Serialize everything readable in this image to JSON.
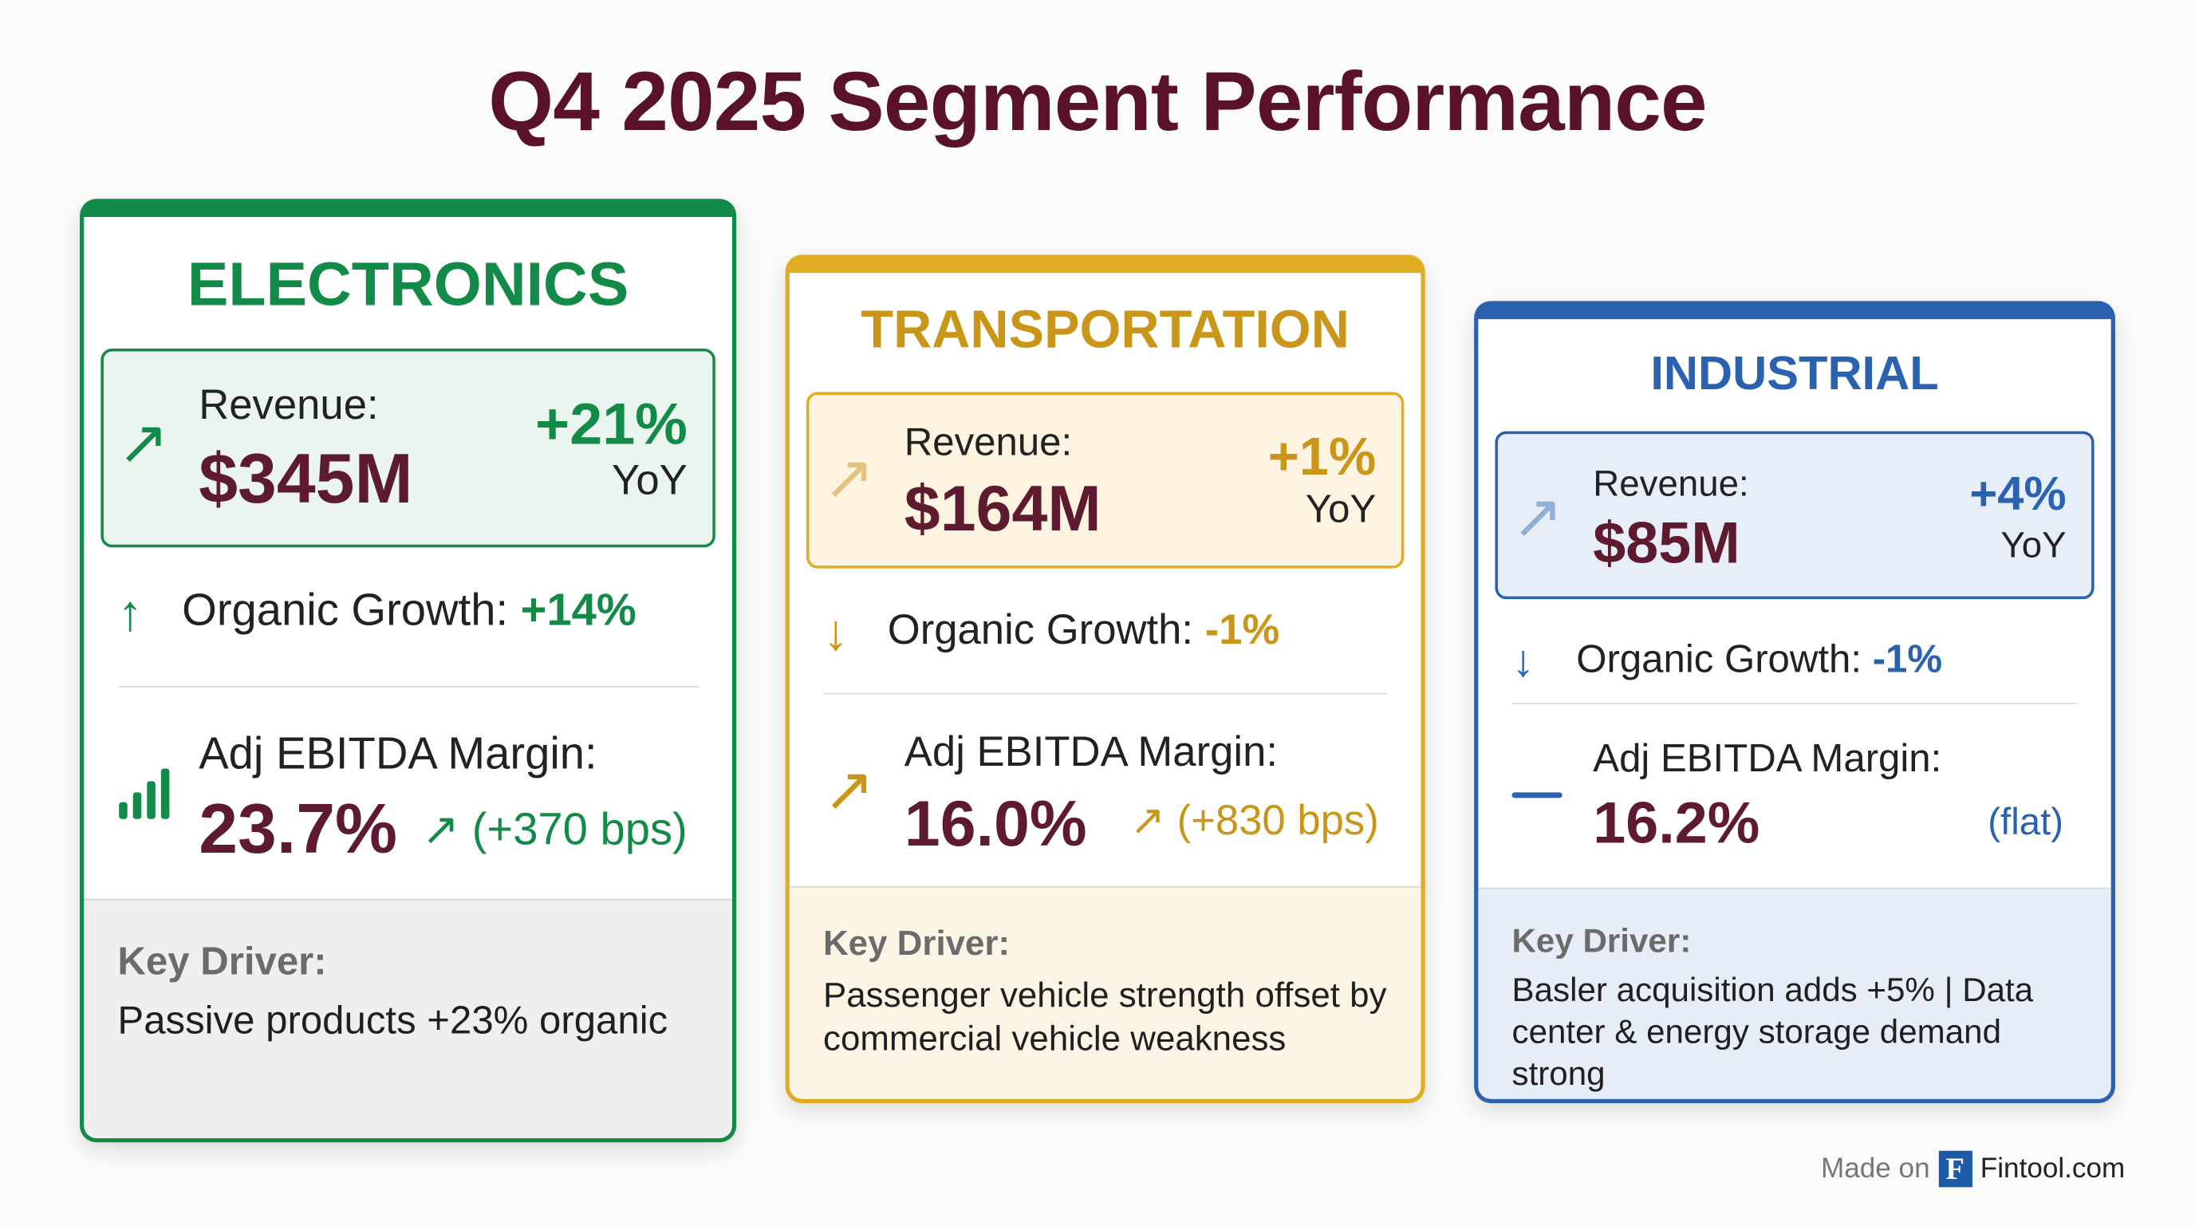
{
  "title": "Q4 2025 Segment Performance",
  "segments": [
    {
      "name": "ELECTRONICS",
      "color": "#128a48",
      "revenue_label": "Revenue:",
      "revenue": "$345M",
      "revenue_change": "+21%",
      "yoy": "YoY",
      "revenue_icon": "arrow-up-right-icon",
      "organic_label": "Organic Growth:",
      "organic_value": "+14%",
      "organic_icon": "arrow-up-icon",
      "ebitda_label": "Adj EBITDA Margin:",
      "ebitda_value": "23.7%",
      "ebitda_change": "(+370 bps)",
      "ebitda_icon": "bar-chart-icon",
      "key_label": "Key Driver:",
      "key_text": "Passive products +23% organic"
    },
    {
      "name": "TRANSPORTATION",
      "color": "#e0ac22",
      "revenue_label": "Revenue:",
      "revenue": "$164M",
      "revenue_change": "+1%",
      "yoy": "YoY",
      "revenue_icon": "arrow-up-right-icon",
      "organic_label": "Organic Growth:",
      "organic_value": "-1%",
      "organic_icon": "arrow-down-icon",
      "ebitda_label": "Adj EBITDA Margin:",
      "ebitda_value": "16.0%",
      "ebitda_change": "(+830 bps)",
      "ebitda_icon": "arrow-up-right-icon",
      "key_label": "Key Driver:",
      "key_text": "Passenger vehicle strength offset by commercial vehicle weakness"
    },
    {
      "name": "INDUSTRIAL",
      "color": "#2a62b0",
      "revenue_label": "Revenue:",
      "revenue": "$85M",
      "revenue_change": "+4%",
      "yoy": "YoY",
      "revenue_icon": "arrow-up-right-icon",
      "organic_label": "Organic Growth:",
      "organic_value": "-1%",
      "organic_icon": "arrow-down-icon",
      "ebitda_label": "Adj EBITDA Margin:",
      "ebitda_value": "16.2%",
      "ebitda_change": "(flat)",
      "ebitda_icon": "dash-icon",
      "key_label": "Key Driver:",
      "key_text": "Basler acquisition adds +5% | Data center & energy storage demand strong"
    }
  ],
  "footer": {
    "made_on": "Made on",
    "logo_letter": "F",
    "brand": "Fintool.com"
  }
}
